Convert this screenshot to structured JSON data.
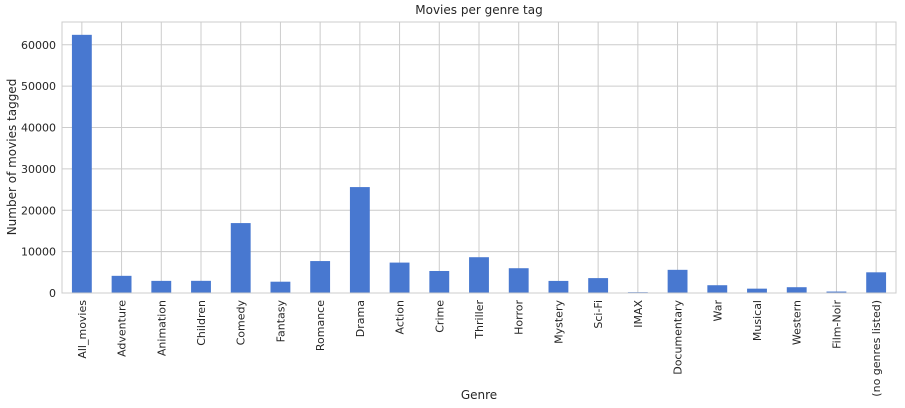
{
  "chart_data": {
    "type": "bar",
    "title": "Movies per genre tag",
    "xlabel": "Genre",
    "ylabel": "Number of movies tagged",
    "categories": [
      "All_movies",
      "Adventure",
      "Animation",
      "Children",
      "Comedy",
      "Fantasy",
      "Romance",
      "Drama",
      "Action",
      "Crime",
      "Thriller",
      "Horror",
      "Mystery",
      "Sci-Fi",
      "IMAX",
      "Documentary",
      "War",
      "Musical",
      "Western",
      "Film-Noir",
      "(no genres listed)"
    ],
    "values": [
      62400,
      4150,
      2930,
      2940,
      16900,
      2730,
      7720,
      25600,
      7350,
      5320,
      8650,
      5990,
      2920,
      3600,
      200,
      5600,
      1880,
      1050,
      1400,
      350,
      5000
    ],
    "ylim": [
      0,
      65500
    ],
    "yticks": [
      0,
      10000,
      20000,
      30000,
      40000,
      50000,
      60000
    ],
    "ytick_labels": [
      "0",
      "10000",
      "20000",
      "30000",
      "40000",
      "50000",
      "60000"
    ],
    "grid": true,
    "bar_color": "#4878d0"
  }
}
